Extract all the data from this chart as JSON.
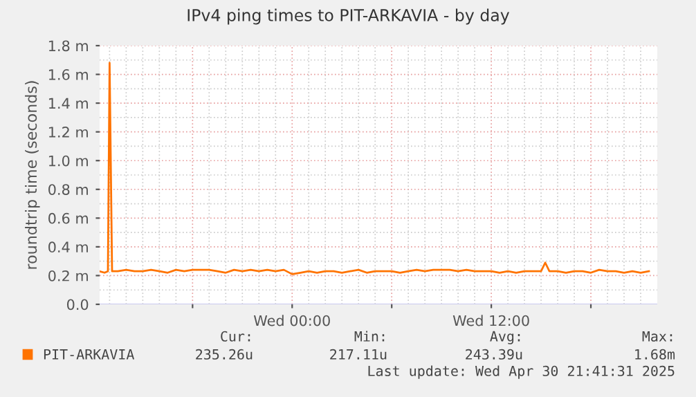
{
  "chart_data": {
    "type": "line",
    "title": "IPv4 ping times to PIT-ARKAVIA - by day",
    "ylabel": "roundtrip time (seconds)",
    "xlim": [
      "2025-04-29T12:24",
      "2025-04-30T22:00"
    ],
    "xticks": [
      {
        "value": "2025-04-29T18:00",
        "label": null
      },
      {
        "value": "2025-04-30T00:00",
        "label": "Wed 00:00"
      },
      {
        "value": "2025-04-30T06:00",
        "label": null
      },
      {
        "value": "2025-04-30T12:00",
        "label": "Wed 12:00"
      },
      {
        "value": "2025-04-30T18:00",
        "label": null
      }
    ],
    "ylim": [
      0,
      1.8
    ],
    "yticks": [
      {
        "value": 0,
        "label": "0.0"
      },
      {
        "value": 0.2,
        "label": "0.2 m"
      },
      {
        "value": 0.4,
        "label": "0.4 m"
      },
      {
        "value": 0.6,
        "label": "0.6 m"
      },
      {
        "value": 0.8,
        "label": "0.8 m"
      },
      {
        "value": 1.0,
        "label": "1.0 m"
      },
      {
        "value": 1.2,
        "label": "1.2 m"
      },
      {
        "value": 1.4,
        "label": "1.4 m"
      },
      {
        "value": 1.6,
        "label": "1.6 m"
      },
      {
        "value": 1.8,
        "label": "1.8 m"
      }
    ],
    "grid": true,
    "legend": "bottom",
    "marker": "none",
    "line_style": "solid",
    "series": [
      {
        "name": "PIT-ARKAVIA",
        "color": "#ff7300",
        "x": [
          "2025-04-29T12:24",
          "2025-04-29T12:42",
          "2025-04-29T12:54",
          "2025-04-29T13:00",
          "2025-04-29T13:09",
          "2025-04-29T13:30",
          "2025-04-29T14:00",
          "2025-04-29T14:30",
          "2025-04-29T15:00",
          "2025-04-29T15:30",
          "2025-04-29T16:00",
          "2025-04-29T16:30",
          "2025-04-29T17:00",
          "2025-04-29T17:30",
          "2025-04-29T18:00",
          "2025-04-29T18:30",
          "2025-04-29T19:00",
          "2025-04-29T19:30",
          "2025-04-29T20:00",
          "2025-04-29T20:30",
          "2025-04-29T21:00",
          "2025-04-29T21:30",
          "2025-04-29T22:00",
          "2025-04-29T22:30",
          "2025-04-29T23:00",
          "2025-04-29T23:30",
          "2025-04-30T00:00",
          "2025-04-30T00:30",
          "2025-04-30T01:00",
          "2025-04-30T01:30",
          "2025-04-30T02:00",
          "2025-04-30T02:30",
          "2025-04-30T03:00",
          "2025-04-30T03:30",
          "2025-04-30T04:00",
          "2025-04-30T04:30",
          "2025-04-30T05:00",
          "2025-04-30T05:30",
          "2025-04-30T06:00",
          "2025-04-30T06:30",
          "2025-04-30T07:00",
          "2025-04-30T07:30",
          "2025-04-30T08:00",
          "2025-04-30T08:30",
          "2025-04-30T09:00",
          "2025-04-30T09:30",
          "2025-04-30T10:00",
          "2025-04-30T10:30",
          "2025-04-30T11:00",
          "2025-04-30T11:30",
          "2025-04-30T12:00",
          "2025-04-30T12:30",
          "2025-04-30T13:00",
          "2025-04-30T13:30",
          "2025-04-30T14:00",
          "2025-04-30T14:30",
          "2025-04-30T15:00",
          "2025-04-30T15:15",
          "2025-04-30T15:30",
          "2025-04-30T16:00",
          "2025-04-30T16:30",
          "2025-04-30T17:00",
          "2025-04-30T17:30",
          "2025-04-30T18:00",
          "2025-04-30T18:30",
          "2025-04-30T19:00",
          "2025-04-30T19:30",
          "2025-04-30T20:00",
          "2025-04-30T20:30",
          "2025-04-30T21:00",
          "2025-04-30T21:30"
        ],
        "values": [
          0.23,
          0.22,
          0.23,
          1.68,
          0.23,
          0.23,
          0.24,
          0.23,
          0.23,
          0.24,
          0.23,
          0.22,
          0.24,
          0.23,
          0.24,
          0.24,
          0.24,
          0.23,
          0.22,
          0.24,
          0.23,
          0.24,
          0.23,
          0.24,
          0.23,
          0.24,
          0.21,
          0.22,
          0.23,
          0.22,
          0.23,
          0.23,
          0.22,
          0.23,
          0.24,
          0.22,
          0.23,
          0.23,
          0.23,
          0.22,
          0.23,
          0.24,
          0.23,
          0.24,
          0.24,
          0.24,
          0.23,
          0.24,
          0.23,
          0.23,
          0.23,
          0.22,
          0.23,
          0.22,
          0.23,
          0.23,
          0.23,
          0.29,
          0.23,
          0.23,
          0.22,
          0.23,
          0.23,
          0.22,
          0.24,
          0.23,
          0.23,
          0.22,
          0.23,
          0.22,
          0.23
        ]
      }
    ],
    "annotations": [
      "Cur:",
      "Min:",
      "Avg:",
      "Max:",
      "235.26u",
      "217.11u",
      "243.39u",
      "1.68m",
      "Last update: Wed Apr 30 21:41:31 2025"
    ]
  }
}
